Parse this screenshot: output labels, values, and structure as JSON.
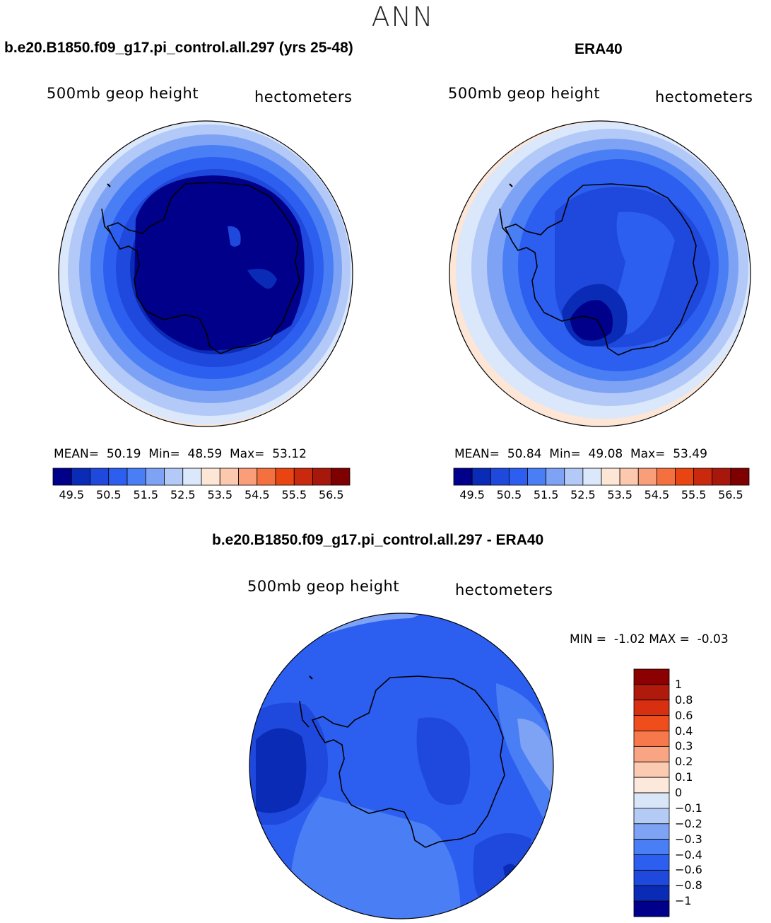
{
  "figure_title": "ANN",
  "panels": [
    {
      "title": "b.e20.B1850.f09_g17.pi_control.all.297 (yrs 25-48)",
      "variable": "500mb geop height",
      "units": "hectometers",
      "stats": {
        "mean_label": "MEAN=",
        "mean": "50.19",
        "min_label": "Min=",
        "min": "48.59",
        "max_label": "Max=",
        "max": "53.12"
      }
    },
    {
      "title": "ERA40",
      "variable": "500mb geop height",
      "units": "hectometers",
      "stats": {
        "mean_label": "MEAN=",
        "mean": "50.84",
        "min_label": "Min=",
        "min": "49.08",
        "max_label": "Max=",
        "max": "53.49"
      }
    },
    {
      "title": "b.e20.B1850.f09_g17.pi_control.all.297 - ERA40",
      "variable": "500mb geop height",
      "units": "hectometers",
      "stats": {
        "min_label": "MIN =",
        "min": "-1.02",
        "max_label": "MAX =",
        "max": "-0.03"
      }
    }
  ],
  "colorbar_top": {
    "labels": [
      "49.5",
      "50.5",
      "51.5",
      "52.5",
      "53.5",
      "54.5",
      "55.5",
      "56.5"
    ],
    "colors": [
      "#00008b",
      "#0a2bb5",
      "#1f48dc",
      "#2c5ff0",
      "#4a7ef5",
      "#7ea3f5",
      "#b3c9f8",
      "#dbe7fa",
      "#fde6d6",
      "#fcc8ae",
      "#f99e78",
      "#f4703e",
      "#e84513",
      "#c92a0d",
      "#a8170b",
      "#7f0000"
    ]
  },
  "colorbar_diff": {
    "labels": [
      "1",
      "0.8",
      "0.6",
      "0.4",
      "0.3",
      "0.2",
      "0.1",
      "0",
      "−0.1",
      "−0.2",
      "−0.3",
      "−0.4",
      "−0.6",
      "−0.8",
      "−1"
    ],
    "colors": [
      "#8b0000",
      "#b01a0c",
      "#d72f10",
      "#ef4d1c",
      "#f7784a",
      "#f9a583",
      "#fbcab1",
      "#fde9dc",
      "#d9e6f8",
      "#b4cbf6",
      "#7ea3f5",
      "#4a7ef5",
      "#2c5ff0",
      "#1f48dc",
      "#0a2bb5",
      "#00008b"
    ]
  },
  "chart_data": {
    "type": "heatmap",
    "region": "South polar stereographic (Antarctica)",
    "season": "ANN",
    "variable": "500mb geop height",
    "units": "hectometers",
    "panels": [
      {
        "name": "b.e20.B1850.f09_g17.pi_control.all.297 (yrs 25-48)",
        "mean": 50.19,
        "min": 48.59,
        "max": 53.12,
        "contour_levels": [
          49.5,
          50,
          50.5,
          51,
          51.5,
          52,
          52.5,
          53,
          53.5,
          54,
          54.5,
          55,
          55.5,
          56,
          56.5
        ]
      },
      {
        "name": "ERA40",
        "mean": 50.84,
        "min": 49.08,
        "max": 53.49,
        "contour_levels": [
          49.5,
          50,
          50.5,
          51,
          51.5,
          52,
          52.5,
          53,
          53.5,
          54,
          54.5,
          55,
          55.5,
          56,
          56.5
        ]
      },
      {
        "name": "b.e20.B1850.f09_g17.pi_control.all.297 - ERA40",
        "min": -1.02,
        "max": -0.03,
        "contour_levels": [
          -1,
          -0.8,
          -0.6,
          -0.4,
          -0.3,
          -0.2,
          -0.1,
          0,
          0.1,
          0.2,
          0.3,
          0.4,
          0.6,
          0.8,
          1
        ]
      }
    ]
  }
}
